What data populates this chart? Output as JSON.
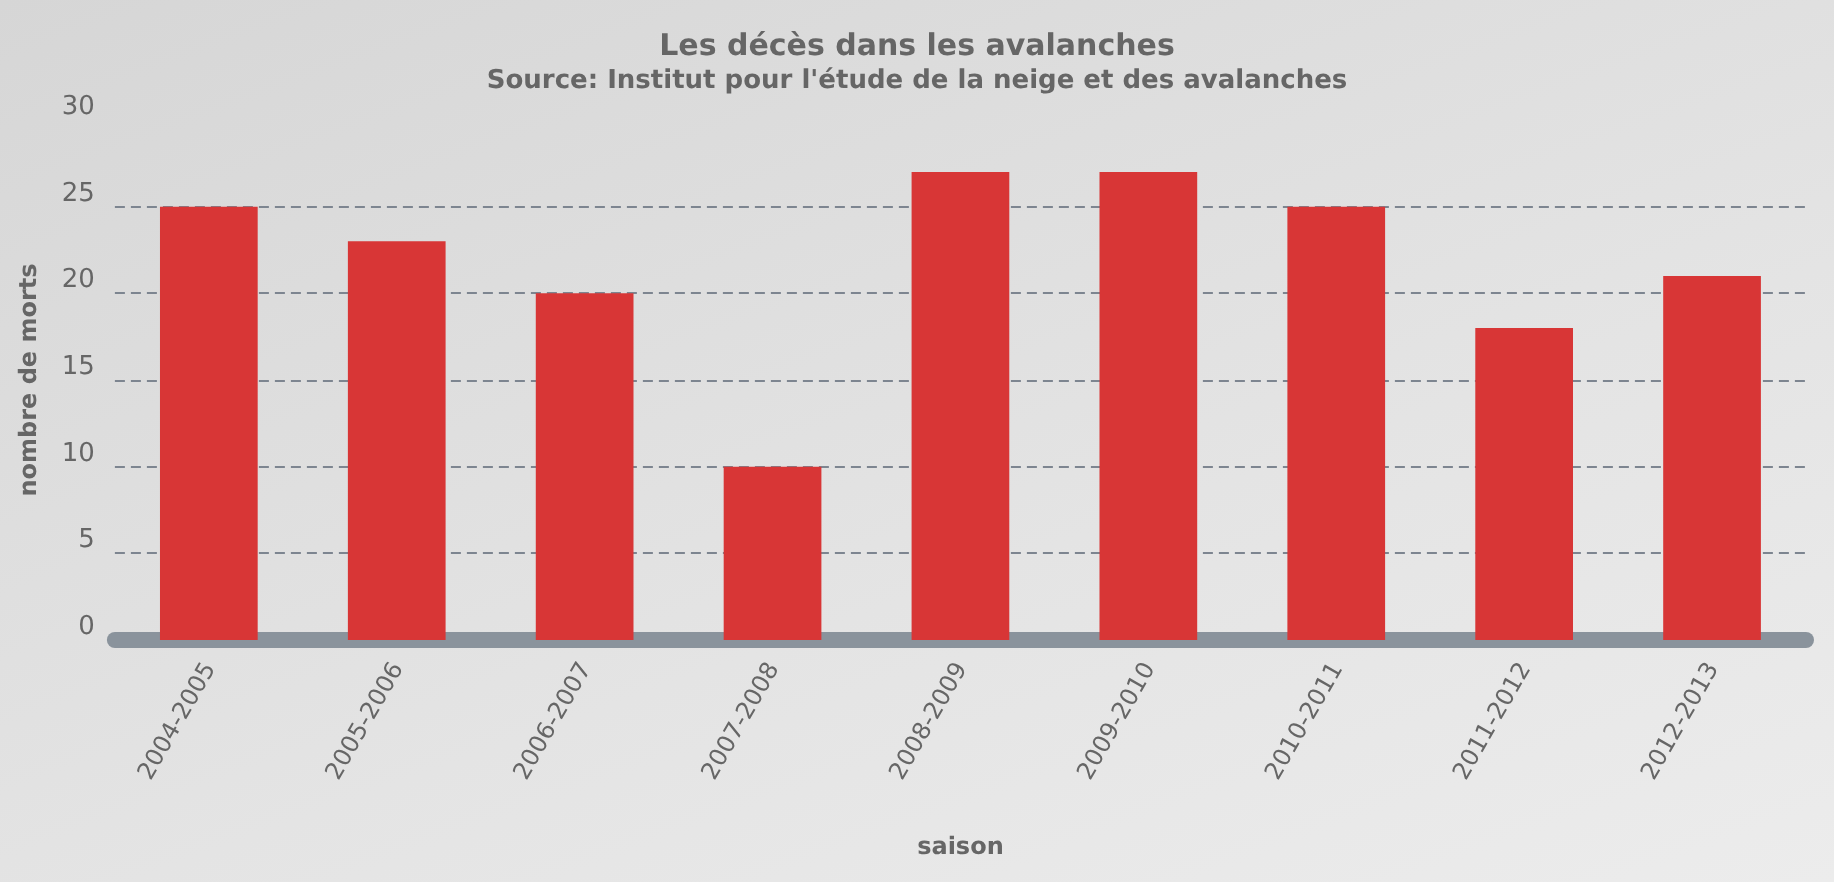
{
  "chart_data": {
    "type": "bar",
    "title": "Les décès dans les avalanches",
    "subtitle": "Source: Institut pour l'étude de la neige et des avalanches",
    "xlabel": "saison",
    "ylabel": "nombre de morts",
    "categories": [
      "2004-2005",
      "2005-2006",
      "2006-2007",
      "2007-2008",
      "2008-2009",
      "2009-2010",
      "2010-2011",
      "2011-2012",
      "2012-2013"
    ],
    "values": [
      25,
      23,
      20,
      10,
      27,
      27,
      25,
      18,
      21
    ],
    "color": "#d83636",
    "ylim": [
      0,
      30
    ],
    "yticks": [
      0,
      5,
      10,
      15,
      20,
      25,
      30
    ],
    "grid": "y"
  }
}
